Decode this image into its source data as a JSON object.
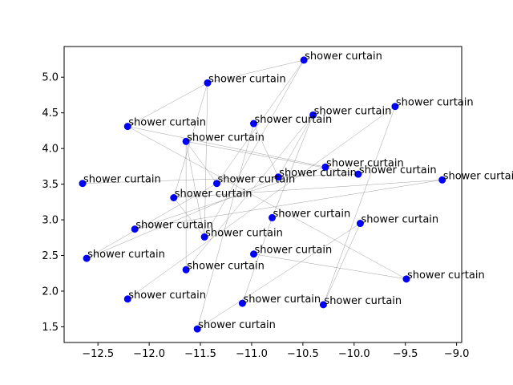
{
  "chart_data": {
    "type": "scatter",
    "title": "",
    "xlabel": "",
    "ylabel": "",
    "xlim": [
      -12.83,
      -8.95
    ],
    "ylim": [
      1.28,
      5.43
    ],
    "x_ticks": [
      -12.5,
      -12.0,
      -11.5,
      -11.0,
      -10.5,
      -10.0,
      -9.5,
      -9.0
    ],
    "x_tick_labels": [
      "−12.5",
      "−12.0",
      "−11.5",
      "−11.0",
      "−10.5",
      "−10.0",
      "−9.5",
      "−9.0"
    ],
    "y_ticks": [
      1.5,
      2.0,
      2.5,
      3.0,
      3.5,
      4.0,
      4.5,
      5.0
    ],
    "y_tick_labels": [
      "1.5",
      "2.0",
      "2.5",
      "3.0",
      "3.5",
      "4.0",
      "4.5",
      "5.0"
    ],
    "grid": false,
    "point_color": "#0000ff",
    "edge_color": "#808080",
    "points": [
      {
        "x": -10.49,
        "y": 5.24,
        "label": "shower curtain"
      },
      {
        "x": -11.43,
        "y": 4.92,
        "label": "shower curtain"
      },
      {
        "x": -9.6,
        "y": 4.59,
        "label": "shower curtain"
      },
      {
        "x": -10.4,
        "y": 4.47,
        "label": "shower curtain"
      },
      {
        "x": -10.98,
        "y": 4.35,
        "label": "shower curtain"
      },
      {
        "x": -12.21,
        "y": 4.31,
        "label": "shower curtain"
      },
      {
        "x": -11.64,
        "y": 4.1,
        "label": "shower curtain"
      },
      {
        "x": -10.28,
        "y": 3.74,
        "label": "shower curtain"
      },
      {
        "x": -9.96,
        "y": 3.64,
        "label": "shower curtain"
      },
      {
        "x": -10.74,
        "y": 3.6,
        "label": "shower curtain"
      },
      {
        "x": -9.14,
        "y": 3.56,
        "label": "shower curtain"
      },
      {
        "x": -12.65,
        "y": 3.51,
        "label": "shower curtain"
      },
      {
        "x": -11.34,
        "y": 3.51,
        "label": "shower curtain"
      },
      {
        "x": -11.76,
        "y": 3.31,
        "label": "shower curtain"
      },
      {
        "x": -10.8,
        "y": 3.03,
        "label": "shower curtain"
      },
      {
        "x": -9.94,
        "y": 2.95,
        "label": "shower curtain"
      },
      {
        "x": -12.14,
        "y": 2.87,
        "label": "shower curtain"
      },
      {
        "x": -11.46,
        "y": 2.76,
        "label": "shower curtain"
      },
      {
        "x": -10.98,
        "y": 2.52,
        "label": "shower curtain"
      },
      {
        "x": -12.61,
        "y": 2.46,
        "label": "shower curtain"
      },
      {
        "x": -11.64,
        "y": 2.3,
        "label": "shower curtain"
      },
      {
        "x": -9.49,
        "y": 2.17,
        "label": "shower curtain"
      },
      {
        "x": -12.21,
        "y": 1.89,
        "label": "shower curtain"
      },
      {
        "x": -11.09,
        "y": 1.83,
        "label": "shower curtain"
      },
      {
        "x": -10.3,
        "y": 1.81,
        "label": "shower curtain"
      },
      {
        "x": -11.53,
        "y": 1.47,
        "label": "shower curtain"
      }
    ],
    "edges": [
      [
        0,
        1
      ],
      [
        0,
        12
      ],
      [
        0,
        17
      ],
      [
        1,
        5
      ],
      [
        1,
        13
      ],
      [
        2,
        22
      ],
      [
        2,
        24
      ],
      [
        3,
        14
      ],
      [
        3,
        20
      ],
      [
        4,
        9
      ],
      [
        5,
        7
      ],
      [
        5,
        21
      ],
      [
        6,
        8
      ],
      [
        6,
        20
      ],
      [
        7,
        16
      ],
      [
        8,
        11
      ],
      [
        9,
        19
      ],
      [
        10,
        16
      ],
      [
        10,
        13
      ],
      [
        12,
        19
      ],
      [
        13,
        17
      ],
      [
        14,
        23
      ],
      [
        15,
        24
      ],
      [
        15,
        25
      ],
      [
        18,
        21
      ],
      [
        17,
        6
      ],
      [
        12,
        6
      ],
      [
        1,
        17
      ],
      [
        4,
        25
      ],
      [
        3,
        9
      ]
    ]
  }
}
